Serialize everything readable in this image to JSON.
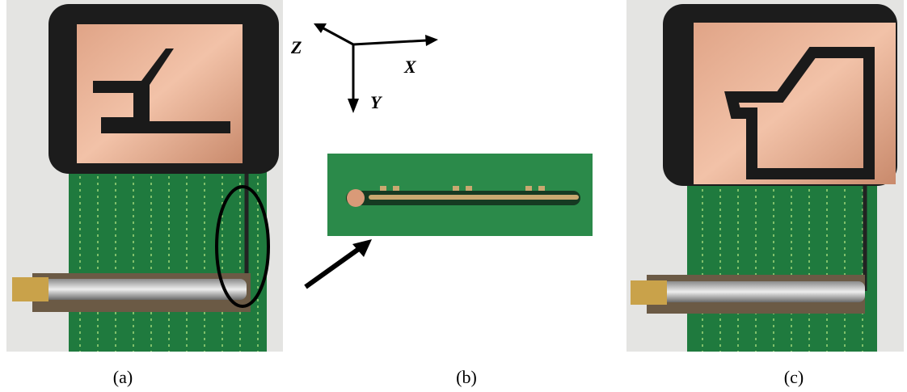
{
  "axes": {
    "z": "Z",
    "x": "X",
    "y": "Y"
  },
  "captions": [
    "(a)",
    "(b)",
    "(c)"
  ]
}
